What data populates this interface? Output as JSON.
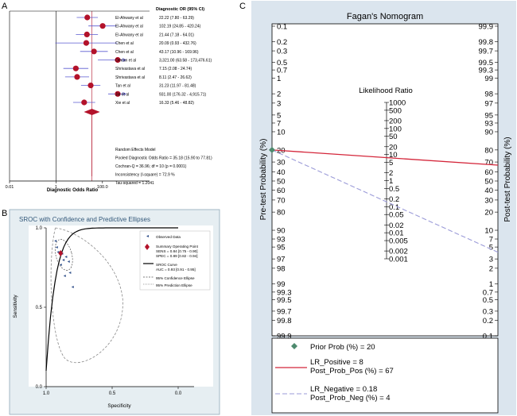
{
  "colors": {
    "forest_marker": "#b3122a",
    "forest_ci": "#5a5ad0",
    "sroc_bg": "#e6eef2",
    "sroc_frame": "#8fa9b8",
    "sroc_title": "#33587a",
    "fagan_bg": "#dbe5ee",
    "fagan_plot": "#ffffff",
    "positive_line": "#d4263a",
    "negative_line": "#9b9bd8",
    "prior_marker": "#4e8a6e"
  },
  "panel_labels": {
    "a": "A",
    "b": "B",
    "c": "C"
  },
  "chart_data": [
    {
      "type": "forest",
      "header": "Diagnostic OR (95% CI)",
      "xlabel": "Diagnostic Odds Ratio",
      "xticks": [
        "0.01",
        "1",
        "100.0"
      ],
      "x_scale": "log",
      "xlim": [
        0.01,
        1000
      ],
      "studies": [
        {
          "name": "El-Ahwany et al",
          "or": 22.22,
          "lo": 7.8,
          "hi": 63.29,
          "label": "22.22  (7.80 - 63.29)"
        },
        {
          "name": "El-Ahwany et al",
          "or": 102.19,
          "lo": 24.85,
          "hi": 420.24,
          "label": "102.19  (24.85 - 420.24)"
        },
        {
          "name": "El-Ahwany et al",
          "or": 21.44,
          "lo": 7.18,
          "hi": 64.01,
          "label": "21.44  (7.18 - 64.01)"
        },
        {
          "name": "Chen et al",
          "or": 20.09,
          "lo": 0.93,
          "hi": 432.76,
          "label": "20.09  (0.93 - 432.76)"
        },
        {
          "name": "Chen et al",
          "or": 43.17,
          "lo": 10.96,
          "hi": 169.96,
          "label": "43.17  (10.96 - 169.96)"
        },
        {
          "name": "Omran et al",
          "or": 3321.0,
          "lo": 63.58,
          "hi": 173476.61,
          "label": "3,321.00  (63.58 - 173,476.61)"
        },
        {
          "name": "Shrivastava et al",
          "or": 7.15,
          "lo": 2.08,
          "hi": 24.74,
          "label": "7.15  (2.08 - 24.74)"
        },
        {
          "name": "Shrivastava et al",
          "or": 8.11,
          "lo": 2.47,
          "hi": 26.62,
          "label": "8.11  (2.47 - 26.62)"
        },
        {
          "name": "Tan et al",
          "or": 31.23,
          "lo": 11.97,
          "hi": 81.48,
          "label": "31.23  (11.97 - 81.48)"
        },
        {
          "name": "Jin et al",
          "or": 931.0,
          "lo": 176.32,
          "hi": 4915.71,
          "label": "931.00  (176.32 - 4,915.71)"
        },
        {
          "name": "Xie et al",
          "or": 16.33,
          "lo": 5.46,
          "hi": 48.82,
          "label": "16.33  (5.46 - 48.82)"
        }
      ],
      "pooled": {
        "or": 35.18,
        "lo": 15.9,
        "hi": 77.81
      },
      "summary_lines": [
        "Random Effects Model",
        "Pooled Diagnostic Odds Ratio = 35.18 (15.90 to 77.81)",
        "Cochran-Q = 36.96; df = 10  (p = 0.0001)",
        "Inconsistency (I-square) = 72.9 %",
        "Tau-squared = 1.2041"
      ]
    },
    {
      "type": "scatter",
      "title": "SROC with Confidence and Predictive Ellipses",
      "xlabel": "Specificity",
      "ylabel": "Sensitivity",
      "xticks": [
        "1.0",
        "0.5",
        "0.0"
      ],
      "yticks": [
        "0.0",
        "0.5",
        "1.0"
      ],
      "xlim": [
        1.0,
        0.0
      ],
      "ylim": [
        0.0,
        1.0
      ],
      "observed": [
        {
          "spec": 0.93,
          "sens": 0.92
        },
        {
          "spec": 0.92,
          "sens": 0.88
        },
        {
          "spec": 0.91,
          "sens": 0.85
        },
        {
          "spec": 0.88,
          "sens": 0.84
        },
        {
          "spec": 0.85,
          "sens": 0.82
        },
        {
          "spec": 0.87,
          "sens": 0.8
        },
        {
          "spec": 0.83,
          "sens": 0.79
        },
        {
          "spec": 0.89,
          "sens": 0.77
        },
        {
          "spec": 0.82,
          "sens": 0.72
        },
        {
          "spec": 0.86,
          "sens": 0.7
        },
        {
          "spec": 0.8,
          "sens": 0.63
        }
      ],
      "summary_point": {
        "spec": 0.89,
        "sens": 0.84
      },
      "auc": 0.93,
      "legend": [
        {
          "key": "observed",
          "text": "Observed Data"
        },
        {
          "key": "summary",
          "text": "Summary Operating Point"
        },
        {
          "key": "sens",
          "text": "SENS = 0.84 [0.75 - 0.90]"
        },
        {
          "key": "spec",
          "text": "SPEC = 0.89 [0.82 - 0.94]"
        },
        {
          "key": "sroc",
          "text": "SROC Curve"
        },
        {
          "key": "auc",
          "text": "AUC = 0.93 [0.91 - 0.95]"
        },
        {
          "key": "conf",
          "text": "95% Confidence Ellipse"
        },
        {
          "key": "pred",
          "text": "95% Prediction Ellipse"
        }
      ]
    },
    {
      "type": "nomogram",
      "title": "Fagan's Nomogram",
      "left_axis_label": "Pre-test Probability (%)",
      "right_axis_label": "Post-test Probability (%)",
      "middle_axis_label": "Likelihood Ratio",
      "left_ticks": [
        "0.1",
        "0.2",
        "0.3",
        "0.5",
        "0.7",
        "1",
        "2",
        "3",
        "5",
        "7",
        "10",
        "20",
        "30",
        "40",
        "50",
        "60",
        "70",
        "80",
        "90",
        "93",
        "95",
        "97",
        "98",
        "99",
        "99.3",
        "99.5",
        "99.7",
        "99.8",
        "99.9"
      ],
      "right_ticks": [
        "99.9",
        "99.8",
        "99.7",
        "99.5",
        "99.3",
        "99",
        "98",
        "97",
        "95",
        "93",
        "90",
        "80",
        "70",
        "60",
        "50",
        "40",
        "30",
        "20",
        "10",
        "7",
        "5",
        "3",
        "2",
        "1",
        "0.7",
        "0.5",
        "0.3",
        "0.2",
        "0.1"
      ],
      "lr_ticks": [
        "1000",
        "500",
        "200",
        "100",
        "50",
        "20",
        "10",
        "5",
        "2",
        "1",
        "0.5",
        "0.2",
        "0.1",
        "0.05",
        "0.02",
        "0.01",
        "0.005",
        "0.002",
        "0.001"
      ],
      "prior_prob": 20,
      "lr_positive": 8,
      "post_prob_pos": 67,
      "lr_negative": 0.18,
      "post_prob_neg": 4,
      "legend": {
        "prior": "Prior Prob (%) =   20",
        "lr_pos": "LR_Positive =      8",
        "post_pos": "Post_Prob_Pos (%) =   67",
        "lr_neg": "LR_Negative =   0.18",
        "post_neg": "Post_Prob_Neg (%) =    4"
      }
    }
  ]
}
